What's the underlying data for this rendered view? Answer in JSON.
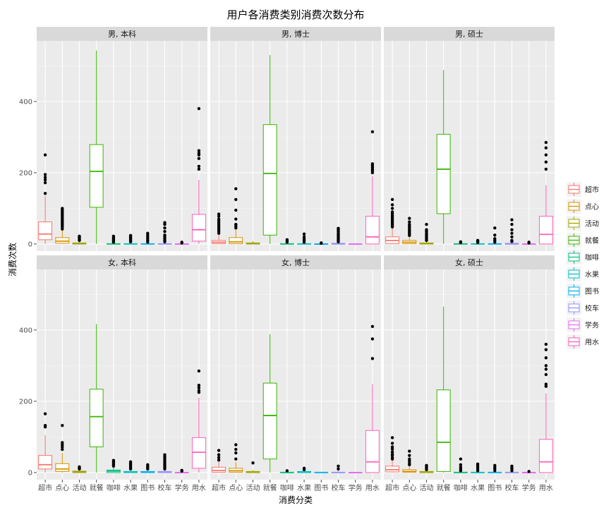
{
  "chart_data": {
    "type": "boxplot",
    "title": "用户各消费类别消费次数分布",
    "xlabel": "消费分类",
    "ylabel": "消费次数",
    "categories": [
      "超市",
      "点心",
      "活动",
      "就餐",
      "咖啡",
      "水果",
      "图书",
      "校车",
      "学务",
      "用水"
    ],
    "colors": [
      "#F8766D",
      "#D89000",
      "#A3A500",
      "#39B600",
      "#00BF7D",
      "#00BFC4",
      "#00B0F6",
      "#9590FF",
      "#E76BF3",
      "#FF62BC"
    ],
    "ylim": [
      -20,
      570
    ],
    "yticks": [
      0,
      200,
      400
    ],
    "grid": true,
    "legend": {
      "position": "right",
      "entries": [
        "超市",
        "点心",
        "活动",
        "就餐",
        "咖啡",
        "水果",
        "图书",
        "校车",
        "学务",
        "用水"
      ]
    },
    "panels": [
      {
        "label": "男, 本科",
        "stats": [
          [
            0,
            12,
            28,
            62,
            135
          ],
          [
            0,
            2,
            8,
            18,
            40
          ],
          [
            0,
            0,
            1,
            3,
            8
          ],
          [
            0,
            103,
            204,
            279,
            543
          ],
          [
            0,
            0,
            0,
            1,
            3
          ],
          [
            0,
            0,
            0,
            1,
            4
          ],
          [
            0,
            0,
            0,
            1,
            3
          ],
          [
            0,
            0,
            0,
            1,
            3
          ],
          [
            0,
            0,
            0,
            0,
            1
          ],
          [
            0,
            8,
            40,
            83,
            180
          ]
        ],
        "outliers": [
          [
            142,
            172,
            180,
            187,
            195,
            250
          ],
          [
            42,
            48,
            52,
            56,
            60,
            64,
            68,
            72,
            76,
            80,
            84,
            88,
            92,
            96,
            100
          ],
          [
            10,
            13,
            16,
            19,
            22
          ],
          [],
          [
            5,
            8,
            11,
            14,
            18,
            22
          ],
          [
            6,
            9,
            12,
            15,
            18,
            21,
            24
          ],
          [
            5,
            10,
            15,
            20,
            25,
            30
          ],
          [
            6,
            10,
            15,
            20,
            25,
            35,
            45,
            55,
            60
          ],
          [
            3,
            5
          ],
          [
            210,
            218,
            240,
            250,
            255,
            262,
            380
          ]
        ]
      },
      {
        "label": "男, 博士",
        "stats": [
          [
            0,
            1,
            5,
            10,
            25
          ],
          [
            0,
            1,
            6,
            18,
            40
          ],
          [
            0,
            0,
            1,
            3,
            8
          ],
          [
            0,
            25,
            198,
            335,
            530
          ],
          [
            0,
            0,
            0,
            1,
            3
          ],
          [
            0,
            0,
            0,
            1,
            3
          ],
          [
            0,
            0,
            0,
            0,
            1
          ],
          [
            0,
            0,
            0,
            2,
            5
          ],
          [
            0,
            0,
            0,
            0,
            0
          ],
          [
            0,
            0,
            20,
            78,
            190
          ]
        ],
        "outliers": [
          [
            30,
            35,
            40,
            45,
            50,
            55,
            60,
            65,
            70,
            78,
            84
          ],
          [
            45,
            50,
            55,
            70,
            95,
            125,
            155
          ],
          [],
          [],
          [
            5,
            8,
            12
          ],
          [
            5,
            10,
            15,
            20,
            28
          ],
          [
            2,
            3
          ],
          [
            6,
            10,
            14,
            18,
            22,
            26,
            30,
            35,
            40,
            44
          ],
          [],
          [
            200,
            205,
            210,
            215,
            220,
            225,
            315
          ]
        ]
      },
      {
        "label": "男, 硕士",
        "stats": [
          [
            0,
            1,
            10,
            20,
            45
          ],
          [
            0,
            1,
            5,
            10,
            22
          ],
          [
            0,
            0,
            1,
            3,
            8
          ],
          [
            0,
            85,
            210,
            308,
            488
          ],
          [
            0,
            0,
            0,
            1,
            2
          ],
          [
            0,
            0,
            0,
            1,
            2
          ],
          [
            0,
            0,
            0,
            1,
            3
          ],
          [
            0,
            0,
            0,
            2,
            5
          ],
          [
            0,
            0,
            0,
            0,
            1
          ],
          [
            0,
            0,
            27,
            78,
            165
          ]
        ],
        "outliers": [
          [
            48,
            52,
            56,
            60,
            64,
            68,
            72,
            76,
            80,
            85,
            90,
            100,
            110,
            125
          ],
          [
            24,
            28,
            32,
            36,
            40,
            45,
            50,
            55,
            62,
            72
          ],
          [
            10,
            14,
            18,
            22,
            26,
            30,
            35,
            40,
            55
          ],
          [],
          [
            4,
            6
          ],
          [
            4,
            6,
            8,
            10
          ],
          [
            5,
            10,
            15,
            25,
            45
          ],
          [
            7,
            10,
            20,
            30,
            40,
            55,
            68
          ],
          [
            3,
            5
          ],
          [
            210,
            230,
            250,
            270,
            285
          ]
        ]
      },
      {
        "label": "女, 本科",
        "stats": [
          [
            0,
            10,
            22,
            48,
            105
          ],
          [
            0,
            3,
            10,
            25,
            55
          ],
          [
            0,
            0,
            2,
            4,
            8
          ],
          [
            0,
            72,
            157,
            234,
            417
          ],
          [
            0,
            0,
            4,
            7,
            15
          ],
          [
            0,
            0,
            1,
            3,
            8
          ],
          [
            0,
            0,
            1,
            3,
            8
          ],
          [
            0,
            0,
            1,
            3,
            8
          ],
          [
            0,
            0,
            0,
            0,
            2
          ],
          [
            0,
            12,
            57,
            98,
            210
          ]
        ],
        "outliers": [
          [
            128,
            132,
            165
          ],
          [
            65,
            72,
            78,
            84,
            132
          ],
          [
            10,
            13,
            16
          ],
          [],
          [
            18,
            22,
            26,
            30,
            34
          ],
          [
            10,
            14,
            18,
            22,
            26,
            30
          ],
          [
            10,
            14,
            18,
            22
          ],
          [
            10,
            14,
            18,
            22,
            26,
            30,
            35,
            40,
            45,
            50
          ],
          [
            4,
            6
          ],
          [
            225,
            230,
            238,
            245,
            285
          ]
        ]
      },
      {
        "label": "女, 博士",
        "stats": [
          [
            0,
            1,
            6,
            15,
            30
          ],
          [
            0,
            1,
            5,
            12,
            30
          ],
          [
            0,
            0,
            1,
            3,
            6
          ],
          [
            0,
            38,
            160,
            251,
            388
          ],
          [
            0,
            0,
            0,
            1,
            3
          ],
          [
            0,
            0,
            1,
            3,
            6
          ],
          [
            0,
            0,
            0,
            1,
            2
          ],
          [
            0,
            0,
            0,
            1,
            5
          ],
          [
            0,
            0,
            0,
            0,
            1
          ],
          [
            0,
            0,
            30,
            118,
            248
          ]
        ],
        "outliers": [
          [
            35,
            42,
            50,
            62
          ],
          [
            38,
            55,
            65,
            78
          ],
          [
            27
          ],
          [],
          [
            5
          ],
          [
            8,
            12
          ],
          [],
          [
            10,
            18
          ],
          [],
          [
            320,
            375,
            410
          ]
        ]
      },
      {
        "label": "女, 硕士",
        "stats": [
          [
            0,
            2,
            8,
            18,
            35
          ],
          [
            0,
            1,
            3,
            8,
            18
          ],
          [
            0,
            0,
            1,
            3,
            6
          ],
          [
            0,
            3,
            85,
            232,
            466
          ],
          [
            0,
            0,
            0,
            1,
            3
          ],
          [
            0,
            0,
            0,
            1,
            3
          ],
          [
            0,
            0,
            0,
            1,
            3
          ],
          [
            0,
            0,
            0,
            1,
            3
          ],
          [
            0,
            0,
            0,
            0,
            1
          ],
          [
            0,
            0,
            30,
            93,
            222
          ]
        ],
        "outliers": [
          [
            38,
            42,
            48,
            52,
            58,
            66,
            72,
            82,
            98
          ],
          [
            22,
            26,
            32,
            38,
            48,
            60
          ],
          [
            8,
            12,
            16,
            20
          ],
          [],
          [
            5,
            10,
            15,
            22,
            38
          ],
          [
            5,
            10,
            15,
            20,
            24
          ],
          [
            5,
            10,
            15,
            20
          ],
          [
            5,
            10,
            14,
            18
          ],
          [
            3
          ],
          [
            242,
            248,
            275,
            290,
            300,
            322,
            345,
            360
          ]
        ]
      }
    ]
  }
}
